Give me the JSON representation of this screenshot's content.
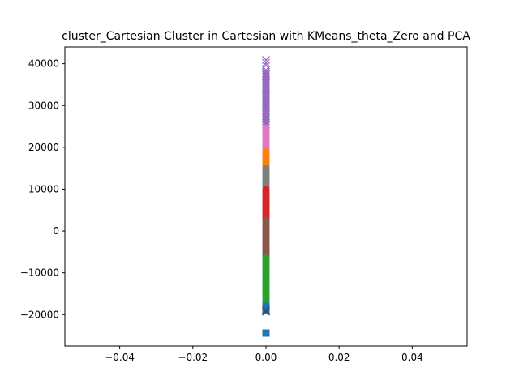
{
  "chart_data": {
    "type": "scatter",
    "title": "cluster_Cartesian Cluster in Cartesian with KMeans_theta_Zero and PCA",
    "xlabel": "",
    "ylabel": "",
    "xlim": [
      -0.055,
      0.055
    ],
    "ylim": [
      -27500,
      44000
    ],
    "x_ticks": [
      -0.04,
      -0.02,
      0.0,
      0.02,
      0.04
    ],
    "x_tick_labels": [
      "−0.04",
      "−0.02",
      "0.00",
      "0.02",
      "0.04"
    ],
    "y_ticks": [
      -20000,
      -10000,
      0,
      10000,
      20000,
      30000,
      40000
    ],
    "y_tick_labels": [
      "−20000",
      "−10000",
      "0",
      "10000",
      "20000",
      "30000",
      "40000"
    ],
    "grid": false,
    "legend": "none",
    "series": [
      {
        "color": "#9467bd",
        "marker": "x",
        "x": 0.0,
        "y_from": 25500,
        "y_to": 38500,
        "extra_y": [
          40200,
          40900,
          39600
        ]
      },
      {
        "color": "#e377c2",
        "marker": "o",
        "x": 0.0,
        "y_from": 19500,
        "y_to": 24500,
        "extra_y": []
      },
      {
        "color": "#ff7f0e",
        "marker": "o",
        "x": 0.0,
        "y_from": 15500,
        "y_to": 19000,
        "extra_y": []
      },
      {
        "color": "#7f7f7f",
        "marker": "o",
        "x": 0.0,
        "y_from": 10500,
        "y_to": 15000,
        "extra_y": []
      },
      {
        "color": "#d62728",
        "marker": "o",
        "x": 0.0,
        "y_from": 3000,
        "y_to": 10000,
        "extra_y": []
      },
      {
        "color": "#8c564b",
        "marker": "o",
        "x": 0.0,
        "y_from": -6000,
        "y_to": 2500,
        "extra_y": []
      },
      {
        "color": "#2ca02c",
        "marker": "o",
        "x": 0.0,
        "y_from": -17500,
        "y_to": -6500,
        "extra_y": []
      },
      {
        "color": "#1f77b4",
        "marker": "s",
        "x": 0.0,
        "y_from": -19000,
        "y_to": -18000,
        "extra_y": [
          -24400
        ]
      },
      {
        "color": "#2f4f6f",
        "marker": "x",
        "x": 0.0,
        "y_from": -19300,
        "y_to": -19300,
        "extra_y": [
          -18900
        ]
      }
    ]
  }
}
